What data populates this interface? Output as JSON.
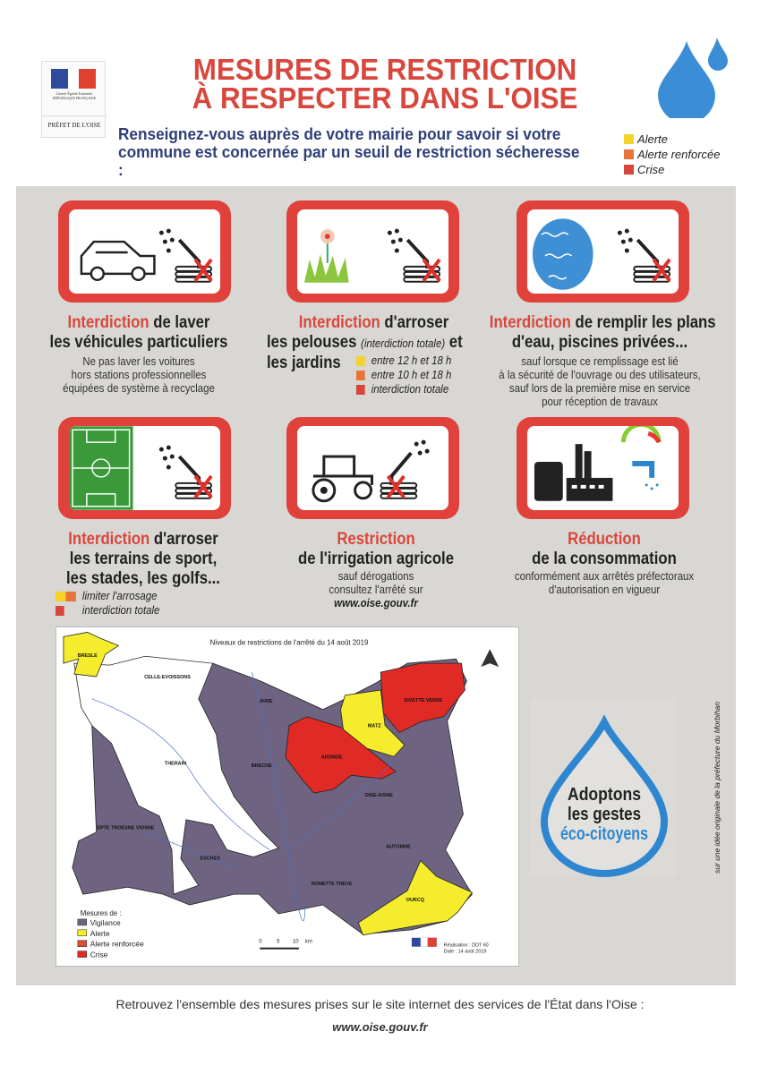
{
  "header": {
    "logo_text": "Liberté Égalité Fraternité RÉPUBLIQUE FRANÇAISE",
    "prefecture": "PRÉFET DE L'OISE",
    "title_line1": "MESURES DE RESTRICTION",
    "title_line2": "À RESPECTER DANS L'OISE",
    "subtitle_line1": "Renseignez-vous auprès de votre mairie pour savoir si votre",
    "subtitle_line2": "commune est concernée par un seuil de restriction sécheresse :",
    "levels": [
      {
        "label": "Alerte",
        "color": "#f5d22a"
      },
      {
        "label": "Alerte renforcée",
        "color": "#e8743a"
      },
      {
        "label": "Crise",
        "color": "#d9453a"
      }
    ]
  },
  "measures": [
    {
      "icon": "car-wash-icon",
      "red": "Interdiction",
      "rest": " de laver",
      "line2": "les véhicules particuliers",
      "details": [
        "Ne pas laver les voitures",
        "hors stations professionnelles",
        "équipées de système à recyclage"
      ]
    },
    {
      "icon": "garden-watering-icon",
      "red": "Interdiction",
      "rest": " d'arroser",
      "line2a": "les pelouses",
      "line2b": "(interdiction totale)",
      "line2c": " et",
      "line3": "les jardins",
      "legend": [
        "entre 12 h et 18 h",
        "entre 10 h et 18 h",
        "interdiction totale"
      ]
    },
    {
      "icon": "pool-filling-icon",
      "red": "Interdiction",
      "rest": " de remplir les plans",
      "line2": "d'eau, piscines privées...",
      "details": [
        "sauf lorsque ce remplissage est lié",
        "à la sécurité de l'ouvrage ou des utilisateurs,",
        "sauf lors de la première mise en service",
        "pour réception de travaux"
      ]
    },
    {
      "icon": "sports-field-icon",
      "red": "Interdiction",
      "rest": " d'arroser",
      "line2": "les terrains de sport,",
      "line3": "les stades, les golfs...",
      "legend": [
        "limiter l'arrosage",
        "interdiction totale"
      ]
    },
    {
      "icon": "tractor-irrigation-icon",
      "red": "Restriction",
      "line2": "de l'irrigation agricole",
      "details": [
        "sauf dérogations",
        "consultez l'arrêté sur"
      ],
      "link": "www.oise.gouv.fr"
    },
    {
      "icon": "industry-icon",
      "red": "Réduction",
      "line2": "de la consommation",
      "details": [
        "conformément aux arrêtés préfectoraux",
        "d'autorisation en vigueur"
      ]
    }
  ],
  "map": {
    "title": "Niveaux de restrictions de l'arrêté du 14 août 2019",
    "regions": [
      {
        "name": "BRESLE",
        "level": "Alerte"
      },
      {
        "name": "CELLE-EVOISSONS",
        "level": "none"
      },
      {
        "name": "AVRE",
        "level": "Vigilance"
      },
      {
        "name": "DIVETTE VERSE",
        "level": "Crise"
      },
      {
        "name": "MATZ",
        "level": "Alerte"
      },
      {
        "name": "ARONDE",
        "level": "Crise"
      },
      {
        "name": "THERAIN",
        "level": "none"
      },
      {
        "name": "BRECHE",
        "level": "Vigilance"
      },
      {
        "name": "OISE-AISNE",
        "level": "Vigilance"
      },
      {
        "name": "EPTE TROESNE VIOSNE",
        "level": "Vigilance"
      },
      {
        "name": "ESCHES",
        "level": "none"
      },
      {
        "name": "AUTOMNE",
        "level": "Vigilance"
      },
      {
        "name": "NONETTE THEVE",
        "level": "Vigilance"
      },
      {
        "name": "OURCQ",
        "level": "Alerte"
      }
    ],
    "legend_title": "Mesures de :",
    "legend": [
      {
        "label": "Vigilance",
        "color": "#6f6580"
      },
      {
        "label": "Alerte",
        "color": "#f4ec2c"
      },
      {
        "label": "Alerte renforcée",
        "color": "#d9502f"
      },
      {
        "label": "Crise",
        "color": "#e02a26"
      }
    ],
    "scale": [
      "0",
      "5",
      "10",
      "km"
    ],
    "credit1": "Réalisation : DDT 60",
    "credit2": "Date : 14 août 2019"
  },
  "eco": {
    "line1": "Adoptons",
    "line2": "les gestes",
    "line3": "éco-citoyens"
  },
  "side_note": "sur une idée originale de la préfecture du Morbihan",
  "footer": {
    "text": "Retrouvez l'ensemble des mesures prises sur le site internet des services de l'État dans l'Oise :",
    "url": "www.oise.gouv.fr"
  }
}
